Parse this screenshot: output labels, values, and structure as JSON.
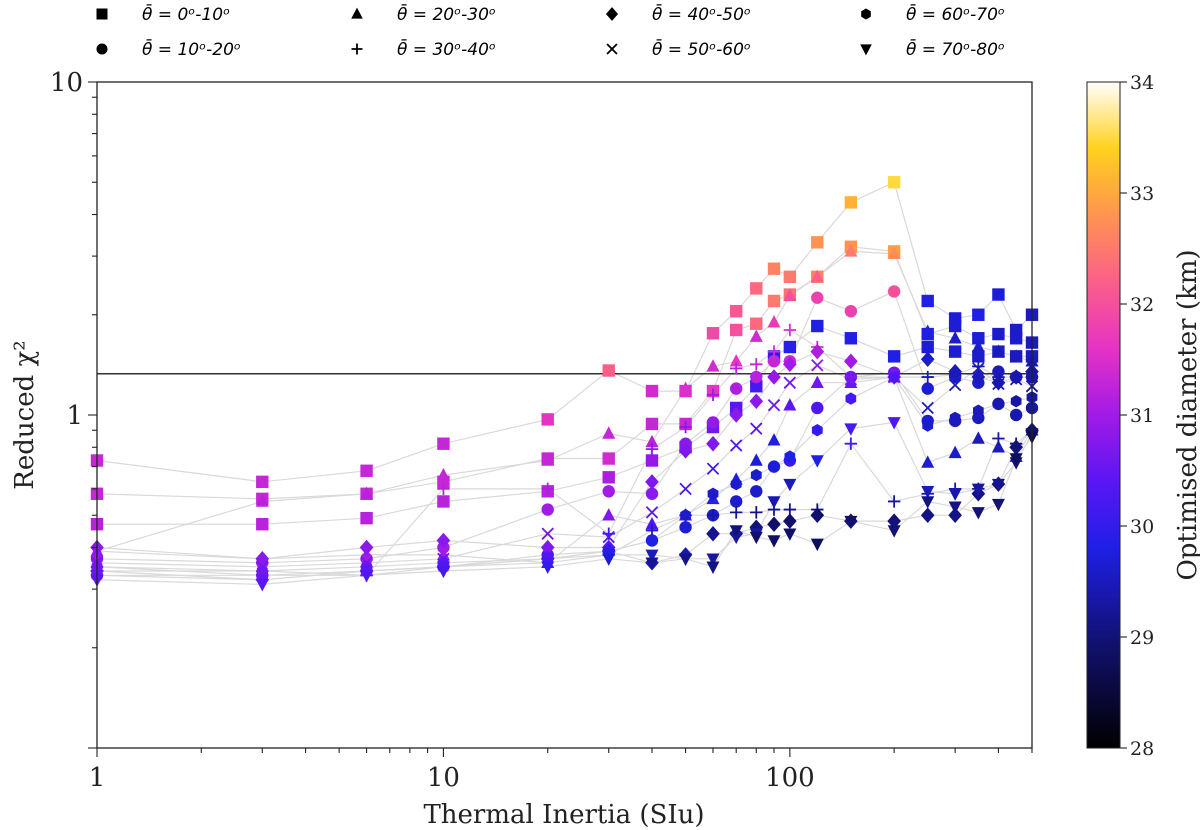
{
  "chart_data": {
    "type": "scatter",
    "title": "",
    "xlabel": "Thermal Inertia (SIu)",
    "ylabel": "Reduced χ²",
    "x_scale": "log",
    "y_scale": "log",
    "xlim": [
      1,
      500
    ],
    "ylim": [
      0.1,
      10
    ],
    "x_ticks": [
      {
        "value": 1,
        "label": "1"
      },
      {
        "value": 10,
        "label": "10"
      },
      {
        "value": 100,
        "label": "100"
      }
    ],
    "y_ticks": [
      {
        "value": 1,
        "label": "1"
      },
      {
        "value": 10,
        "label": "10"
      }
    ],
    "reference_line": {
      "y": 1.33
    },
    "colorbar": {
      "label": "Optimised diameter (km)",
      "min": 28,
      "max": 34,
      "ticks": [
        "28",
        "29",
        "30",
        "31",
        "32",
        "33",
        "34"
      ],
      "colormap": "gnuplot2-like"
    },
    "legend": [
      {
        "marker": "square",
        "label": "θ̄ = 0ᵒ-10ᵒ"
      },
      {
        "marker": "circle",
        "label": "θ̄ = 10ᵒ-20ᵒ"
      },
      {
        "marker": "triangle-up",
        "label": "θ̄ = 20ᵒ-30ᵒ"
      },
      {
        "marker": "plus",
        "label": "θ̄ = 30ᵒ-40ᵒ"
      },
      {
        "marker": "diamond",
        "label": "θ̄ = 40ᵒ-50ᵒ"
      },
      {
        "marker": "x",
        "label": "θ̄ = 50ᵒ-60ᵒ"
      },
      {
        "marker": "hexagon",
        "label": "θ̄ = 60ᵒ-70ᵒ"
      },
      {
        "marker": "triangle-down",
        "label": "θ̄ = 70ᵒ-80ᵒ"
      }
    ],
    "x_values": [
      1,
      3,
      6,
      10,
      20,
      30,
      40,
      50,
      60,
      70,
      80,
      90,
      100,
      120,
      150,
      200,
      250,
      300,
      350,
      400,
      450,
      500
    ],
    "series": [
      {
        "name": "sq-a",
        "marker": "square",
        "y": [
          0.73,
          0.63,
          0.68,
          0.82,
          0.97,
          1.36,
          1.18,
          1.18,
          1.76,
          2.05,
          2.4,
          2.75,
          2.6,
          3.3,
          4.35,
          5.0,
          2.2,
          1.95,
          2.0,
          2.3,
          1.8,
          2.0
        ],
        "d": [
          31.3,
          31.3,
          31.3,
          31.3,
          31.6,
          32.2,
          31.4,
          31.5,
          31.9,
          32.1,
          32.3,
          32.6,
          32.5,
          32.8,
          33.1,
          33.5,
          29.8,
          29.7,
          29.8,
          29.7,
          29.6,
          29.5
        ]
      },
      {
        "name": "sq-b",
        "marker": "square",
        "y": [
          0.58,
          0.56,
          0.58,
          0.63,
          0.74,
          0.74,
          0.94,
          0.94,
          1.18,
          1.8,
          1.88,
          2.2,
          2.3,
          2.6,
          3.2,
          3.1,
          1.75,
          1.85,
          1.7,
          1.75,
          1.7,
          1.65
        ],
        "d": [
          31.3,
          31.3,
          31.3,
          31.3,
          31.3,
          31.4,
          31.3,
          31.3,
          31.6,
          32.0,
          32.3,
          32.5,
          32.4,
          32.6,
          32.8,
          32.9,
          29.8,
          29.7,
          29.7,
          29.6,
          29.6,
          29.5
        ]
      },
      {
        "name": "sq-c",
        "marker": "square",
        "y": [
          0.47,
          0.47,
          0.49,
          0.55,
          0.59,
          0.65,
          0.73,
          0.8,
          0.92,
          1.05,
          1.22,
          1.5,
          1.6,
          1.85,
          1.7,
          1.5,
          1.6,
          1.55,
          1.5,
          1.55,
          1.5,
          1.5
        ],
        "d": [
          31.2,
          31.2,
          31.2,
          31.2,
          31.2,
          31.1,
          30.9,
          30.8,
          30.6,
          30.4,
          30.2,
          30.0,
          29.9,
          29.8,
          29.8,
          29.8,
          29.7,
          29.7,
          29.6,
          29.6,
          29.5,
          29.5
        ]
      },
      {
        "name": "tri-a",
        "marker": "triangle-up",
        "y": [
          0.39,
          0.55,
          0.58,
          0.66,
          0.73,
          0.88,
          0.83,
          1.2,
          1.4,
          1.45,
          1.72,
          1.9,
          2.28,
          2.6,
          3.1,
          3.05,
          1.78,
          1.7,
          1.6,
          1.55,
          1.5,
          1.45
        ],
        "d": [
          31.1,
          31.2,
          31.2,
          31.3,
          31.3,
          31.3,
          31.2,
          31.5,
          31.4,
          31.6,
          31.4,
          31.7,
          32.0,
          32.2,
          32.5,
          32.7,
          29.8,
          29.6,
          29.6,
          29.5,
          29.5,
          29.4
        ]
      },
      {
        "name": "tri-b",
        "marker": "triangle-up",
        "y": [
          0.39,
          0.37,
          0.38,
          0.38,
          0.36,
          0.5,
          0.47,
          0.5,
          0.56,
          0.64,
          0.73,
          0.84,
          1.07,
          1.25,
          1.25,
          1.3,
          0.72,
          0.77,
          0.85,
          0.8,
          0.75,
          0.9
        ],
        "d": [
          30.9,
          30.9,
          30.9,
          30.9,
          30.2,
          30.7,
          30.3,
          30.0,
          29.9,
          29.8,
          29.7,
          29.8,
          30.4,
          30.6,
          30.5,
          30.4,
          29.7,
          29.6,
          29.5,
          29.5,
          29.4,
          29.4
        ]
      },
      {
        "name": "circ-a",
        "marker": "circle",
        "y": [
          0.37,
          0.36,
          0.37,
          0.4,
          0.52,
          0.59,
          0.58,
          0.82,
          0.95,
          1.2,
          1.3,
          1.45,
          1.45,
          2.25,
          2.05,
          2.35,
          1.2,
          1.3,
          1.25,
          1.35,
          1.3,
          1.3
        ],
        "d": [
          30.9,
          31.0,
          31.0,
          31.0,
          31.0,
          31.0,
          30.8,
          30.8,
          30.9,
          31.1,
          31.2,
          31.3,
          31.3,
          31.8,
          31.8,
          32.0,
          29.7,
          29.6,
          29.6,
          29.5,
          29.5,
          29.4
        ]
      },
      {
        "name": "circ-b",
        "marker": "circle",
        "y": [
          0.33,
          0.33,
          0.34,
          0.35,
          0.38,
          0.39,
          0.42,
          0.46,
          0.5,
          0.55,
          0.59,
          0.7,
          0.73,
          1.05,
          1.3,
          1.34,
          0.96,
          0.96,
          0.98,
          1.08,
          1.0,
          1.05
        ],
        "d": [
          30.7,
          30.7,
          30.7,
          30.5,
          30.3,
          30.0,
          29.8,
          29.7,
          29.6,
          29.6,
          29.6,
          29.9,
          30.0,
          30.3,
          30.5,
          30.6,
          29.7,
          29.5,
          29.5,
          29.4,
          29.4,
          29.3
        ]
      },
      {
        "name": "plus-a",
        "marker": "plus",
        "y": [
          0.35,
          0.33,
          0.33,
          0.6,
          0.6,
          0.44,
          0.79,
          0.92,
          1.15,
          1.38,
          1.42,
          1.55,
          1.8,
          1.6,
          1.3,
          1.3,
          1.3,
          1.32,
          1.4,
          1.3,
          1.3,
          1.3
        ],
        "d": [
          30.6,
          30.5,
          30.4,
          31.2,
          31.1,
          30.1,
          30.8,
          30.8,
          31.0,
          31.2,
          31.3,
          31.4,
          31.5,
          31.4,
          30.8,
          30.6,
          29.5,
          29.5,
          29.4,
          29.4,
          29.3,
          29.3
        ]
      },
      {
        "name": "plus-b",
        "marker": "plus",
        "y": [
          0.34,
          0.34,
          0.33,
          0.35,
          0.37,
          0.38,
          0.45,
          0.5,
          0.5,
          0.51,
          0.51,
          0.52,
          0.52,
          0.52,
          0.82,
          0.55,
          0.58,
          0.6,
          0.6,
          0.85,
          0.82,
          0.9
        ],
        "d": [
          30.5,
          30.5,
          30.4,
          30.3,
          30.2,
          29.8,
          29.6,
          29.4,
          29.3,
          29.2,
          29.1,
          29.1,
          29.1,
          29.1,
          30.1,
          29.3,
          29.4,
          29.4,
          29.3,
          29.3,
          29.2,
          29.2
        ]
      },
      {
        "name": "dia-a",
        "marker": "diamond",
        "y": [
          0.4,
          0.37,
          0.4,
          0.42,
          0.4,
          0.4,
          0.63,
          0.78,
          0.82,
          1.0,
          1.1,
          1.3,
          1.42,
          1.55,
          1.45,
          1.3,
          1.47,
          1.35,
          1.3,
          1.25,
          1.3,
          1.35
        ],
        "d": [
          30.8,
          30.8,
          30.8,
          30.8,
          30.7,
          30.4,
          30.7,
          30.7,
          30.7,
          30.8,
          30.8,
          30.9,
          31.0,
          31.1,
          31.0,
          30.8,
          29.6,
          29.5,
          29.5,
          29.4,
          29.4,
          29.3
        ]
      },
      {
        "name": "dia-b",
        "marker": "diamond",
        "y": [
          0.34,
          0.32,
          0.34,
          0.35,
          0.37,
          0.39,
          0.36,
          0.38,
          0.44,
          0.44,
          0.46,
          0.47,
          0.48,
          0.5,
          0.48,
          0.48,
          0.5,
          0.5,
          0.58,
          0.62,
          0.8,
          0.9
        ],
        "d": [
          30.6,
          30.6,
          30.5,
          30.4,
          30.3,
          30.1,
          29.5,
          29.4,
          29.2,
          29.1,
          29.0,
          28.9,
          28.9,
          28.9,
          29.0,
          29.0,
          29.1,
          29.1,
          29.1,
          29.0,
          29.0,
          28.9
        ]
      },
      {
        "name": "x-a",
        "marker": "x",
        "y": [
          0.36,
          0.35,
          0.36,
          0.37,
          0.44,
          0.43,
          0.51,
          0.6,
          0.69,
          0.81,
          0.91,
          1.07,
          1.25,
          1.41,
          1.28,
          1.3,
          1.05,
          1.23,
          1.38,
          1.24,
          1.28,
          1.22
        ],
        "d": [
          30.6,
          30.6,
          30.6,
          30.6,
          30.6,
          30.3,
          30.4,
          30.3,
          30.2,
          30.3,
          30.4,
          30.5,
          30.6,
          30.8,
          30.7,
          30.5,
          29.6,
          29.5,
          29.5,
          29.4,
          29.4,
          29.3
        ]
      },
      {
        "name": "hex-a",
        "marker": "hexagon",
        "y": [
          0.35,
          0.34,
          0.35,
          0.36,
          0.37,
          0.39,
          0.42,
          0.5,
          0.58,
          0.62,
          0.66,
          0.7,
          0.75,
          0.9,
          1.12,
          1.3,
          0.93,
          0.98,
          1.03,
          1.08,
          1.1,
          1.13
        ],
        "d": [
          30.6,
          30.6,
          30.5,
          30.4,
          30.3,
          30.0,
          29.8,
          29.6,
          29.6,
          29.6,
          29.6,
          29.7,
          29.8,
          30.0,
          30.2,
          30.3,
          29.6,
          29.5,
          29.5,
          29.4,
          29.3,
          29.3
        ]
      },
      {
        "name": "tdown-a",
        "marker": "triangle-down",
        "y": [
          0.33,
          0.32,
          0.34,
          0.35,
          0.36,
          0.38,
          0.38,
          0.37,
          0.37,
          0.43,
          0.44,
          0.55,
          0.62,
          0.73,
          0.91,
          0.95,
          0.59,
          0.58,
          0.6,
          0.62,
          0.72,
          0.88
        ],
        "d": [
          30.5,
          30.5,
          30.4,
          30.3,
          30.2,
          29.9,
          29.5,
          29.4,
          29.3,
          29.3,
          29.3,
          29.4,
          29.5,
          29.8,
          30.2,
          30.3,
          29.5,
          29.4,
          29.3,
          29.2,
          29.0,
          28.9
        ]
      },
      {
        "name": "tdown-b",
        "marker": "triangle-down",
        "y": [
          0.32,
          0.31,
          0.33,
          0.34,
          0.35,
          0.37,
          0.36,
          0.37,
          0.35,
          0.45,
          0.43,
          0.42,
          0.44,
          0.41,
          0.48,
          0.45,
          0.55,
          0.53,
          0.51,
          0.54,
          0.74,
          0.86
        ],
        "d": [
          30.4,
          30.4,
          30.3,
          30.2,
          30.0,
          29.7,
          29.2,
          29.1,
          29.1,
          29.0,
          28.9,
          28.9,
          28.9,
          28.8,
          28.9,
          29.0,
          29.1,
          29.1,
          29.0,
          29.0,
          28.8,
          28.7
        ]
      }
    ]
  }
}
